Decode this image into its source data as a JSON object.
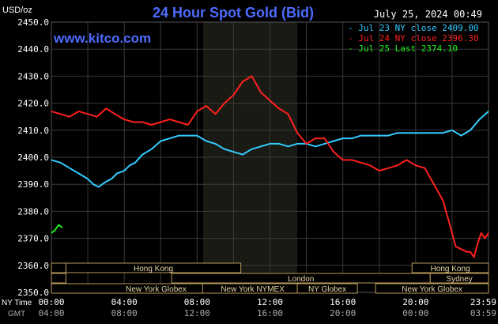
{
  "header": {
    "units": "USD/oz",
    "title": "24 Hour Spot Gold (Bid)",
    "site": "www.kitco.com",
    "timestamp": "July 25, 2024 00:49"
  },
  "legend": [
    {
      "text": "Jul 23 NY close 2409.00",
      "color": "#33ccff"
    },
    {
      "text": "Jul 24 NY close 2396.30",
      "color": "#ff2020"
    },
    {
      "text": "Jul 25 Last 2374.10",
      "color": "#22ee22"
    }
  ],
  "colors": {
    "background": "#000000",
    "grid": "#3a3a3a",
    "axis_text": "#ffffff",
    "session_box": "#b89a5a",
    "nymex_shade": "#1a1a14",
    "title": "#4d6bff"
  },
  "axes": {
    "x_prefix_top": "NY Time",
    "x_prefix_bottom": "GMT",
    "x_ticks_ny": [
      "00:00",
      "04:00",
      "08:00",
      "12:00",
      "16:00",
      "20:00",
      "23:59"
    ],
    "x_ticks_gmt": [
      "04:00",
      "08:00",
      "12:00",
      "16:00",
      "20:00",
      "00:00",
      "03:59"
    ],
    "y_ticks": [
      "2350.0",
      "2360.0",
      "2370.0",
      "2380.0",
      "2390.0",
      "2400.0",
      "2410.0",
      "2420.0",
      "2430.0",
      "2440.0",
      "2450.0"
    ]
  },
  "sessions": [
    "Hong Kong",
    "London",
    "New York Globex",
    "New York NYMEX",
    "NY Globex",
    "Hong Kong",
    "Sydney",
    "New York Globex"
  ],
  "chart_data": {
    "type": "line",
    "title": "24 Hour Spot Gold (Bid)",
    "ylabel": "USD/oz",
    "xlabel": "NY Time",
    "ylim": [
      2350,
      2450
    ],
    "xlim_hours": [
      0,
      24
    ],
    "grid": true,
    "legend_position": "top-right",
    "series": [
      {
        "name": "Jul 23 NY close 2409.00",
        "color": "#33ccff",
        "x": [
          0,
          0.5,
          1,
          1.5,
          2,
          2.3,
          2.6,
          3,
          3.3,
          3.6,
          4,
          4.3,
          4.6,
          5,
          5.5,
          6,
          6.5,
          7,
          7.5,
          8,
          8.5,
          9,
          9.5,
          10,
          10.5,
          11,
          11.5,
          12,
          12.5,
          13,
          13.5,
          14,
          14.5,
          15,
          15.5,
          16,
          16.5,
          17,
          17.5,
          18,
          18.5,
          19,
          19.5,
          20,
          20.5,
          21,
          21.5,
          22,
          22.5,
          23,
          23.5,
          24
        ],
        "y": [
          2399,
          2398,
          2396,
          2394,
          2392,
          2390,
          2389,
          2391,
          2392,
          2394,
          2395,
          2397,
          2398,
          2401,
          2403,
          2406,
          2407,
          2408,
          2408,
          2408,
          2406,
          2405,
          2403,
          2402,
          2401,
          2403,
          2404,
          2405,
          2405,
          2404,
          2405,
          2405,
          2404,
          2405,
          2406,
          2407,
          2407,
          2408,
          2408,
          2408,
          2408,
          2409,
          2409,
          2409,
          2409,
          2409,
          2409,
          2410,
          2408,
          2410,
          2414,
          2417
        ]
      },
      {
        "name": "Jul 24 NY close 2396.30",
        "color": "#ff2020",
        "x": [
          0,
          0.5,
          1,
          1.5,
          2,
          2.5,
          3,
          3.5,
          4,
          4.5,
          5,
          5.5,
          6,
          6.5,
          7,
          7.5,
          8,
          8.5,
          9,
          9.5,
          10,
          10.5,
          11,
          11.5,
          12,
          12.5,
          13,
          13.5,
          14,
          14.5,
          15,
          15.5,
          16,
          16.5,
          17,
          17.5,
          18,
          18.5,
          19,
          19.5,
          20,
          20.5,
          21,
          21.5,
          22,
          22.2,
          22.5,
          22.8,
          23,
          23.2,
          23.4,
          23.6,
          23.8,
          24
        ],
        "y": [
          2417,
          2416,
          2415,
          2417,
          2416,
          2415,
          2418,
          2416,
          2414,
          2413,
          2413,
          2412,
          2413,
          2414,
          2413,
          2412,
          2417,
          2419,
          2416,
          2420,
          2423,
          2428,
          2430,
          2424,
          2421,
          2418,
          2416,
          2409,
          2405,
          2407,
          2407,
          2402,
          2399,
          2399,
          2398,
          2397,
          2395,
          2396,
          2397,
          2399,
          2397,
          2396,
          2390,
          2384,
          2372,
          2367,
          2366,
          2365,
          2365,
          2363,
          2368,
          2372,
          2370,
          2372
        ]
      },
      {
        "name": "Jul 25 Last 2374.10",
        "color": "#22ee22",
        "x": [
          0,
          0.2,
          0.4,
          0.6
        ],
        "y": [
          2372,
          2373,
          2375,
          2374
        ]
      }
    ]
  }
}
